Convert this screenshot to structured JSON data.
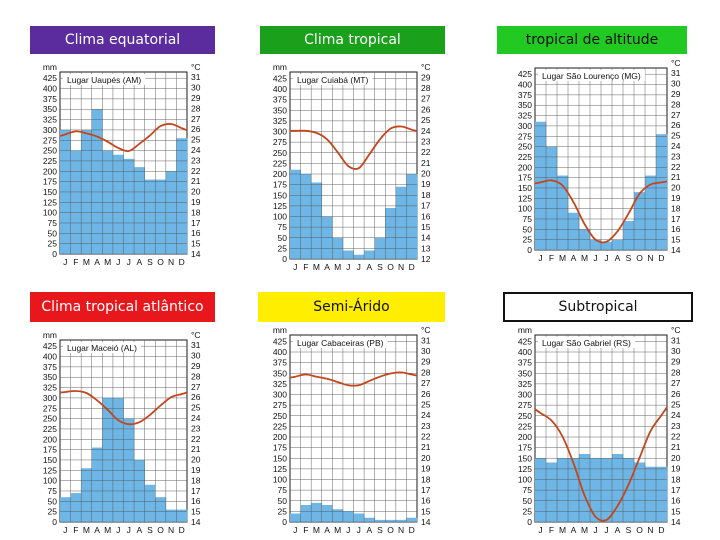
{
  "units": {
    "precip": "mm",
    "temp": "°C"
  },
  "months": [
    "J",
    "F",
    "M",
    "A",
    "M",
    "J",
    "J",
    "A",
    "S",
    "O",
    "N",
    "D"
  ],
  "chart_data": [
    {
      "type": "bar",
      "title": "Clima equatorial",
      "title_style": {
        "bg": "#5b2c9e",
        "color": "#ffffff"
      },
      "location": "Lugar Uaupés (AM)",
      "y_ticks": [
        0,
        25,
        50,
        75,
        100,
        125,
        150,
        175,
        200,
        225,
        250,
        275,
        300,
        325,
        350,
        375,
        400,
        425
      ],
      "y_top_label": "mm",
      "ylim": [
        0,
        440
      ],
      "t_ticks": [
        14,
        15,
        16,
        17,
        18,
        19,
        20,
        21,
        22,
        23,
        24,
        25,
        26,
        27,
        28,
        29,
        30,
        31
      ],
      "t_top_label": "°C",
      "tlim": [
        14,
        31.5
      ],
      "categories": [
        "J",
        "F",
        "M",
        "A",
        "M",
        "J",
        "J",
        "A",
        "S",
        "O",
        "N",
        "D"
      ],
      "precipitation": [
        300,
        250,
        300,
        350,
        250,
        240,
        230,
        210,
        180,
        180,
        200,
        280
      ],
      "temperature": [
        25.5,
        25.8,
        25.6,
        25.3,
        24.8,
        24.2,
        23.9,
        24.6,
        25.4,
        26.3,
        26.5,
        26.1
      ]
    },
    {
      "type": "bar",
      "title": "Clima tropical",
      "title_style": {
        "bg": "#1aa01a",
        "color": "#ffffff"
      },
      "location": "Lugar Cuiabá (MT)",
      "y_ticks": [
        0,
        25,
        50,
        75,
        100,
        125,
        150,
        175,
        200,
        225,
        250,
        275,
        300,
        325,
        350,
        375,
        400,
        425
      ],
      "y_top_label": "mm",
      "ylim": [
        0,
        440
      ],
      "t_ticks": [
        12,
        13,
        14,
        15,
        16,
        17,
        18,
        19,
        20,
        21,
        22,
        23,
        24,
        25,
        26,
        27,
        28,
        29
      ],
      "t_top_label": "°C",
      "tlim": [
        12,
        29.5
      ],
      "categories": [
        "J",
        "F",
        "M",
        "A",
        "M",
        "J",
        "J",
        "A",
        "S",
        "O",
        "N",
        "D"
      ],
      "precipitation": [
        210,
        200,
        180,
        100,
        50,
        20,
        10,
        20,
        50,
        120,
        170,
        200
      ],
      "temperature": [
        24,
        24,
        23.8,
        23.2,
        22,
        20.7,
        20.5,
        21.8,
        23.2,
        24.2,
        24.4,
        24.1
      ]
    },
    {
      "type": "bar",
      "title": "tropical de altitude",
      "title_style": {
        "bg": "#22c922",
        "color": "#111111"
      },
      "location": "Lugar São Lourenço (MG)",
      "y_ticks": [
        0,
        25,
        50,
        75,
        100,
        125,
        150,
        175,
        200,
        225,
        250,
        275,
        300,
        325,
        350,
        375,
        400,
        425
      ],
      "y_top_label": "",
      "ylim": [
        0,
        440
      ],
      "t_ticks": [
        14,
        15,
        16,
        17,
        18,
        19,
        20,
        21,
        22,
        23,
        24,
        25,
        26,
        27,
        28,
        29,
        30,
        31
      ],
      "t_top_label": "°C",
      "tlim": [
        14,
        31.5
      ],
      "categories": [
        "J",
        "F",
        "M",
        "A",
        "M",
        "J",
        "J",
        "A",
        "S",
        "O",
        "N",
        "D"
      ],
      "precipitation": [
        310,
        250,
        180,
        90,
        50,
        25,
        20,
        25,
        70,
        140,
        180,
        280
      ],
      "temperature": [
        20.5,
        20.7,
        20.2,
        18.6,
        16.5,
        15,
        14.8,
        15.8,
        17.5,
        19.4,
        20.3,
        20.5
      ]
    },
    {
      "type": "bar",
      "title": "Clima tropical atlântico",
      "title_style": {
        "bg": "#e8171b",
        "color": "#ffffff"
      },
      "location": "Lugar Maceió (AL)",
      "y_ticks": [
        0,
        25,
        50,
        75,
        100,
        125,
        150,
        175,
        200,
        225,
        250,
        275,
        300,
        325,
        350,
        375,
        400,
        425
      ],
      "y_top_label": "mm",
      "ylim": [
        0,
        440
      ],
      "t_ticks": [
        14,
        15,
        16,
        17,
        18,
        19,
        20,
        21,
        22,
        23,
        24,
        25,
        26,
        27,
        28,
        29,
        30,
        31
      ],
      "t_top_label": "°C",
      "tlim": [
        14,
        31.5
      ],
      "categories": [
        "J",
        "F",
        "M",
        "A",
        "M",
        "J",
        "J",
        "A",
        "S",
        "O",
        "N",
        "D"
      ],
      "precipitation": [
        60,
        70,
        130,
        180,
        300,
        300,
        250,
        150,
        90,
        60,
        30,
        30
      ],
      "temperature": [
        26.5,
        26.6,
        26.4,
        25.7,
        24.8,
        23.8,
        23.4,
        23.6,
        24.3,
        25.2,
        26,
        26.3
      ]
    },
    {
      "type": "bar",
      "title": "Semi-Árido",
      "title_style": {
        "bg": "#ffee00",
        "color": "#111111"
      },
      "location": "Lugar Cabaceiras (PB)",
      "y_ticks": [
        0,
        25,
        50,
        75,
        100,
        125,
        150,
        175,
        200,
        225,
        250,
        275,
        300,
        325,
        350,
        375,
        400,
        425
      ],
      "y_top_label": "mm",
      "ylim": [
        0,
        440
      ],
      "t_ticks": [
        14,
        15,
        16,
        17,
        18,
        19,
        20,
        21,
        22,
        23,
        24,
        25,
        26,
        27,
        28,
        29,
        30,
        31
      ],
      "t_top_label": "°C",
      "tlim": [
        14,
        31.5
      ],
      "categories": [
        "J",
        "F",
        "M",
        "A",
        "M",
        "J",
        "J",
        "A",
        "S",
        "O",
        "N",
        "D"
      ],
      "precipitation": [
        20,
        40,
        45,
        40,
        30,
        25,
        20,
        10,
        5,
        5,
        5,
        10
      ],
      "temperature": [
        27.6,
        27.8,
        27.6,
        27.4,
        27.1,
        26.8,
        26.8,
        27.2,
        27.6,
        27.9,
        28,
        27.8
      ]
    },
    {
      "type": "bar",
      "title": "Subtropical",
      "title_style": {
        "bg": "#ffffff",
        "color": "#111111",
        "border": "#111111"
      },
      "location": "Lugar São Gabriel (RS)",
      "y_ticks": [
        0,
        25,
        50,
        75,
        100,
        125,
        150,
        175,
        200,
        225,
        250,
        275,
        300,
        325,
        350,
        375,
        400,
        425
      ],
      "y_top_label": "mm",
      "ylim": [
        0,
        440
      ],
      "t_ticks": [
        14,
        15,
        16,
        17,
        18,
        19,
        20,
        21,
        22,
        23,
        24,
        25,
        26,
        27,
        28,
        29,
        30,
        31
      ],
      "t_top_label": "°C",
      "tlim": [
        14,
        31.5
      ],
      "categories": [
        "J",
        "F",
        "M",
        "A",
        "M",
        "J",
        "J",
        "A",
        "S",
        "O",
        "N",
        "D"
      ],
      "precipitation": [
        150,
        140,
        150,
        150,
        160,
        150,
        150,
        160,
        150,
        140,
        130,
        130
      ],
      "temperature": [
        24.2,
        23.5,
        22,
        19.5,
        16.5,
        14.5,
        14.2,
        15.5,
        17.5,
        20,
        22.5,
        24
      ]
    }
  ]
}
